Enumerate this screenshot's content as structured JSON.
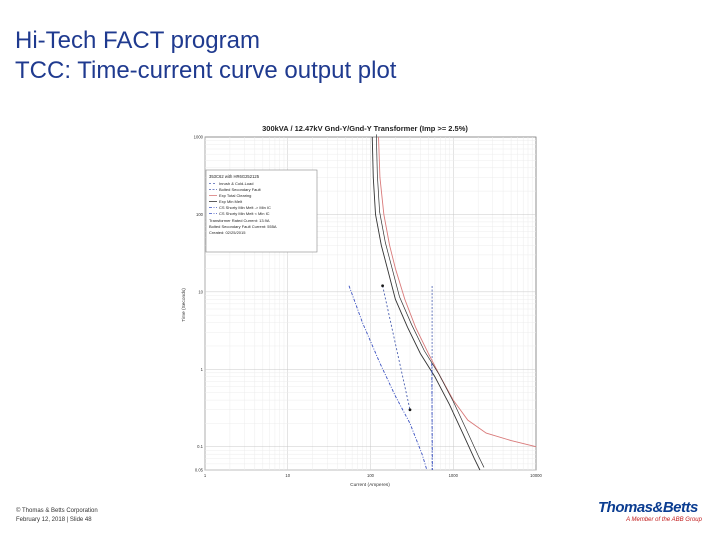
{
  "slide": {
    "title_line1": "Hi-Tech FACT program",
    "title_line2": "TCC: Time-current curve output plot",
    "footer_line1": "© Thomas & Betts Corporation",
    "footer_line2": "February 12, 2018   | Slide 48",
    "logo_name": "Thomas&Betts",
    "logo_tagline": "A Member of the ABB Group"
  },
  "colors": {
    "title": "#1f3a8f",
    "logo": "#0b3d91",
    "inrush": "#1a1a1a",
    "bolted_fault": "#4a5fb0",
    "total_clearing": "#d97a7a",
    "min_melt": "#333333",
    "cs_limit": "#3a50c0"
  },
  "chart_data": {
    "type": "line",
    "title": "300kVA / 12.47kV Gnd-Y/Gnd-Y Transformer (Imp >= 2.5%)",
    "xlabel": "Current (Amperes)",
    "ylabel": "Time (Seconds)",
    "x_scale": "log",
    "y_scale": "log",
    "xlim": [
      1,
      10000
    ],
    "ylim": [
      0.05,
      1000
    ],
    "x_ticks": [
      {
        "value": 1,
        "label": "1"
      },
      {
        "value": 10,
        "label": "10"
      },
      {
        "value": 100,
        "label": "100"
      },
      {
        "value": 1000,
        "label": "1000"
      },
      {
        "value": 10000,
        "label": "10000"
      }
    ],
    "y_ticks": [
      {
        "value": 1000,
        "label": "1000"
      },
      {
        "value": 100,
        "label": "100"
      },
      {
        "value": 10,
        "label": "10"
      },
      {
        "value": 1,
        "label": "1"
      },
      {
        "value": 0.1,
        "label": "0.1"
      },
      {
        "value": 0.05,
        "label": "0.05"
      }
    ],
    "grid": true,
    "legend_position": "top-left",
    "legend_header": "353C62 with HR6G252125",
    "legend_notes": [
      "Transformer Rated Current: 13.9A",
      "Bolted Secondary Fault Current: 555A",
      "Created: 02/25/2015"
    ],
    "series": [
      {
        "name": "Inrush & Cold-Load",
        "style": "dotted-markers",
        "points": [
          [
            140,
            12
          ],
          [
            300,
            0.3
          ]
        ]
      },
      {
        "name": "Bolted Secondary Fault",
        "style": "vertical",
        "points": [
          [
            555,
            0.05
          ],
          [
            555,
            12
          ]
        ]
      },
      {
        "name": "Exp Total Clearing",
        "style": "solid",
        "points": [
          [
            125,
            1000
          ],
          [
            130,
            300
          ],
          [
            145,
            100
          ],
          [
            170,
            40
          ],
          [
            200,
            20
          ],
          [
            260,
            8
          ],
          [
            350,
            3.5
          ],
          [
            500,
            1.6
          ],
          [
            700,
            0.8
          ],
          [
            1000,
            0.4
          ],
          [
            1500,
            0.22
          ],
          [
            2500,
            0.15
          ],
          [
            5000,
            0.12
          ],
          [
            10000,
            0.1
          ]
        ]
      },
      {
        "name": "Exp Min Melt",
        "style": "solid",
        "points": [
          [
            105,
            1000
          ],
          [
            108,
            300
          ],
          [
            115,
            100
          ],
          [
            135,
            40
          ],
          [
            160,
            20
          ],
          [
            200,
            8
          ],
          [
            280,
            3.5
          ],
          [
            400,
            1.6
          ],
          [
            600,
            0.8
          ],
          [
            900,
            0.35
          ],
          [
            1300,
            0.15
          ],
          [
            1800,
            0.07
          ],
          [
            2100,
            0.05
          ]
        ]
      },
      {
        "name": "CS Shorty Min Melt -> Min IC",
        "style": "dash-dot",
        "points": [
          [
            55,
            12
          ],
          [
            80,
            4
          ],
          [
            130,
            1.2
          ],
          [
            200,
            0.45
          ],
          [
            300,
            0.2
          ],
          [
            420,
            0.08
          ],
          [
            480,
            0.05
          ]
        ]
      },
      {
        "name": "CS Shorty Min Melt < Min IC",
        "style": "dash-dot",
        "points": [
          [
            550,
            1.2
          ],
          [
            560,
            0.05
          ]
        ]
      }
    ]
  }
}
